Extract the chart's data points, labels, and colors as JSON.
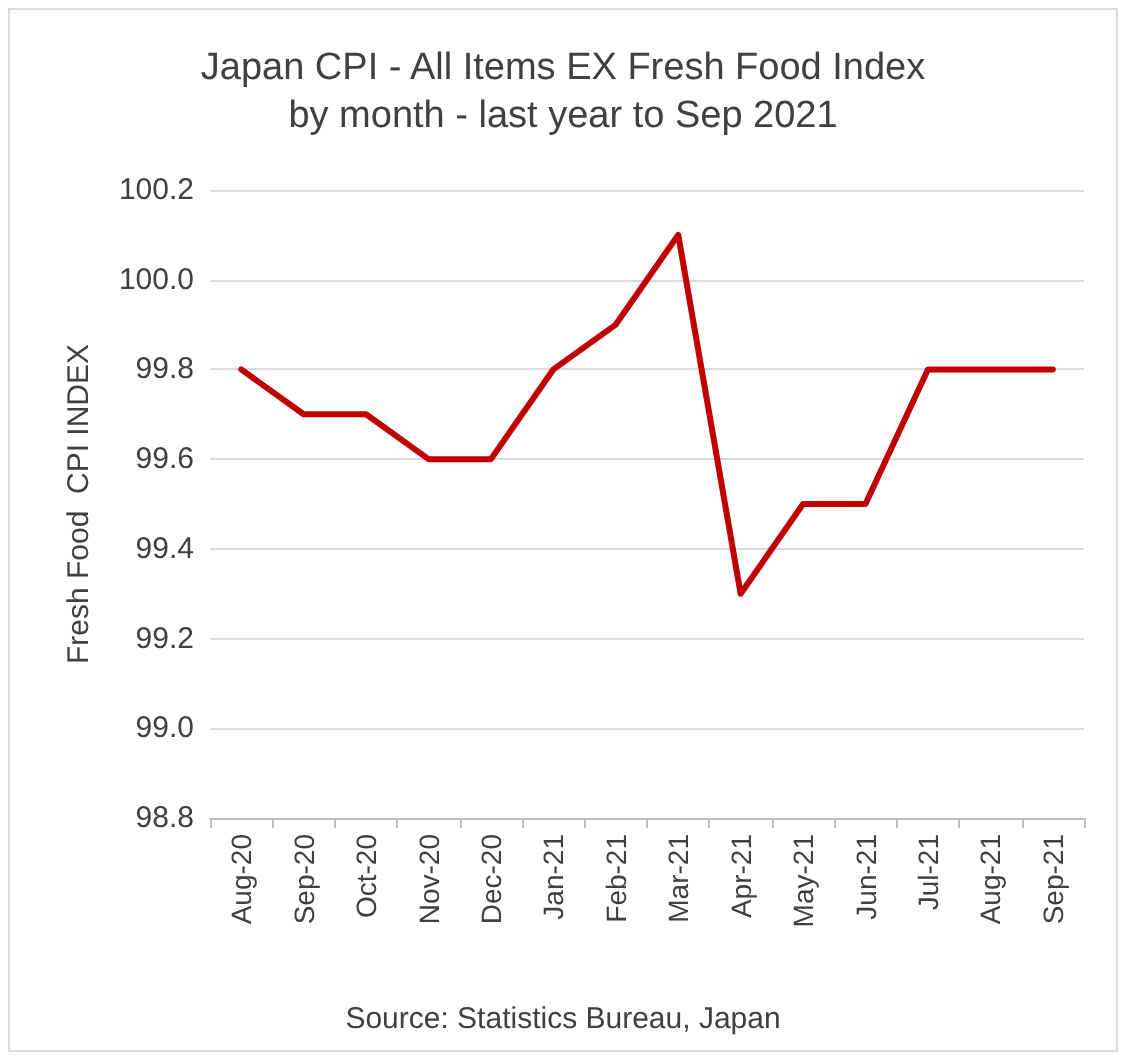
{
  "chart_data": {
    "type": "line",
    "title": "Japan CPI - All Items EX Fresh Food Index\nby month - last year to Sep 2021",
    "ylabel": "Fresh Food  CPI INDEX",
    "categories": [
      "Aug-20",
      "Sep-20",
      "Oct-20",
      "Nov-20",
      "Dec-20",
      "Jan-21",
      "Feb-21",
      "Mar-21",
      "Apr-21",
      "May-21",
      "Jun-21",
      "Jul-21",
      "Aug-21",
      "Sep-21"
    ],
    "series": [
      {
        "color": "#c00000",
        "values": [
          99.8,
          99.7,
          99.7,
          99.6,
          99.6,
          99.8,
          99.9,
          100.1,
          99.3,
          99.5,
          99.5,
          99.8,
          99.8,
          99.8
        ]
      }
    ],
    "ylim": [
      98.8,
      100.2
    ],
    "yticks": [
      {
        "value": 98.8,
        "label": "98.8"
      },
      {
        "value": 99.0,
        "label": "99.0"
      },
      99.2,
      99.4,
      99.6,
      99.8,
      {
        "value": 100.0,
        "label": "100.0"
      },
      100.2
    ],
    "grid": "y",
    "marker": "none",
    "line_style": "solid",
    "annotations": [
      "Source: Statistics Bureau, Japan"
    ]
  }
}
